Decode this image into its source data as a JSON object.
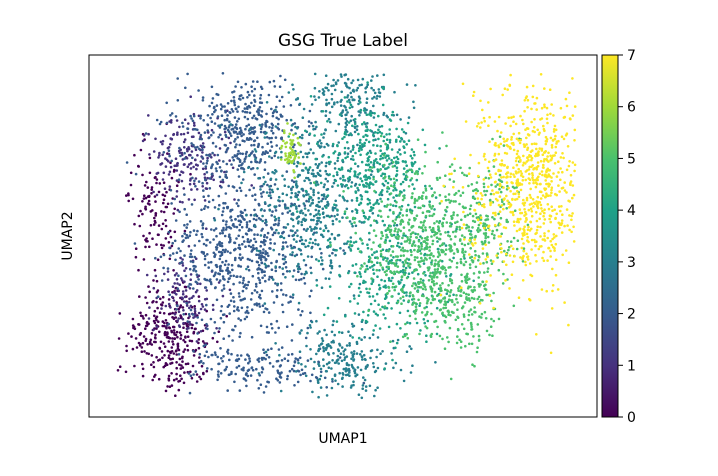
{
  "chart_data": {
    "type": "scatter",
    "title": "GSG True Label",
    "xlabel": "UMAP1",
    "ylabel": "UMAP2",
    "colorbar": {
      "colormap": "viridis",
      "range": [
        0,
        7
      ],
      "ticks": [
        "0",
        "1",
        "2",
        "3",
        "4",
        "5",
        "6",
        "7"
      ]
    },
    "series": [
      {
        "label_value": 0,
        "color": "#440154",
        "clusters": [
          {
            "cx": 0.16,
            "cy": 0.78,
            "sx": 0.04,
            "sy": 0.08,
            "n": 320
          },
          {
            "cx": 0.13,
            "cy": 0.42,
            "sx": 0.025,
            "sy": 0.08,
            "n": 120
          }
        ]
      },
      {
        "label_value": 1,
        "color": "#46327e",
        "clusters": [
          {
            "cx": 0.2,
            "cy": 0.28,
            "sx": 0.04,
            "sy": 0.06,
            "n": 180
          },
          {
            "cx": 0.19,
            "cy": 0.66,
            "sx": 0.03,
            "sy": 0.06,
            "n": 110
          }
        ]
      },
      {
        "label_value": 2,
        "color": "#365c8d",
        "clusters": [
          {
            "cx": 0.3,
            "cy": 0.2,
            "sx": 0.06,
            "sy": 0.07,
            "n": 380
          },
          {
            "cx": 0.3,
            "cy": 0.55,
            "sx": 0.07,
            "sy": 0.12,
            "n": 700
          },
          {
            "cx": 0.34,
            "cy": 0.86,
            "sx": 0.07,
            "sy": 0.04,
            "n": 160
          }
        ]
      },
      {
        "label_value": 3,
        "color": "#277f8e",
        "clusters": [
          {
            "cx": 0.44,
            "cy": 0.4,
            "sx": 0.06,
            "sy": 0.12,
            "n": 500
          },
          {
            "cx": 0.5,
            "cy": 0.84,
            "sx": 0.06,
            "sy": 0.05,
            "n": 220
          },
          {
            "cx": 0.52,
            "cy": 0.12,
            "sx": 0.05,
            "sy": 0.05,
            "n": 180
          }
        ]
      },
      {
        "label_value": 4,
        "color": "#1fa187",
        "clusters": [
          {
            "cx": 0.56,
            "cy": 0.3,
            "sx": 0.05,
            "sy": 0.08,
            "n": 380
          },
          {
            "cx": 0.6,
            "cy": 0.6,
            "sx": 0.06,
            "sy": 0.1,
            "n": 320
          }
        ]
      },
      {
        "label_value": 5,
        "color": "#4ac16d",
        "clusters": [
          {
            "cx": 0.66,
            "cy": 0.5,
            "sx": 0.06,
            "sy": 0.1,
            "n": 560
          },
          {
            "cx": 0.72,
            "cy": 0.68,
            "sx": 0.05,
            "sy": 0.07,
            "n": 260
          },
          {
            "cx": 0.79,
            "cy": 0.45,
            "sx": 0.03,
            "sy": 0.08,
            "n": 140
          }
        ]
      },
      {
        "label_value": 6,
        "color": "#a0da39",
        "clusters": [
          {
            "cx": 0.395,
            "cy": 0.27,
            "sx": 0.01,
            "sy": 0.03,
            "n": 60
          }
        ]
      },
      {
        "label_value": 7,
        "color": "#fde725",
        "clusters": [
          {
            "cx": 0.87,
            "cy": 0.36,
            "sx": 0.055,
            "sy": 0.14,
            "n": 760
          }
        ]
      }
    ]
  }
}
